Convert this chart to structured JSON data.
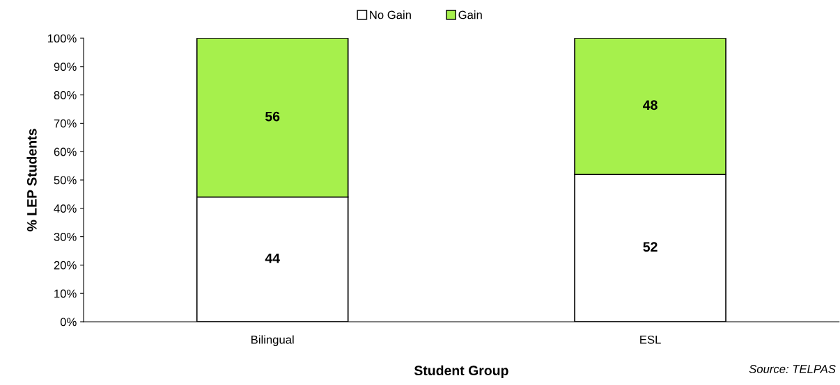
{
  "chart_data": {
    "type": "bar",
    "stacked": true,
    "xlabel": "Student Group",
    "ylabel": "% LEP Students",
    "categories": [
      "Bilingual",
      "ESL"
    ],
    "series": [
      {
        "name": "No Gain",
        "color": "#ffffff",
        "values": [
          44,
          52
        ]
      },
      {
        "name": "Gain",
        "color": "#a6f04c",
        "values": [
          56,
          48
        ]
      }
    ],
    "ylim": [
      0,
      100
    ],
    "yticks": [
      {
        "value": 0,
        "label": "0%"
      },
      {
        "value": 10,
        "label": "10%"
      },
      {
        "value": 20,
        "label": "20%"
      },
      {
        "value": 30,
        "label": "30%"
      },
      {
        "value": 40,
        "label": "40%"
      },
      {
        "value": 50,
        "label": "50%"
      },
      {
        "value": 60,
        "label": "60%"
      },
      {
        "value": 70,
        "label": "70%"
      },
      {
        "value": 80,
        "label": "80%"
      },
      {
        "value": 90,
        "label": "90%"
      },
      {
        "value": 100,
        "label": "100%"
      }
    ],
    "data_labels": true,
    "legend": "top",
    "grid": false,
    "annotations": [
      "Source: TELPAS"
    ]
  }
}
